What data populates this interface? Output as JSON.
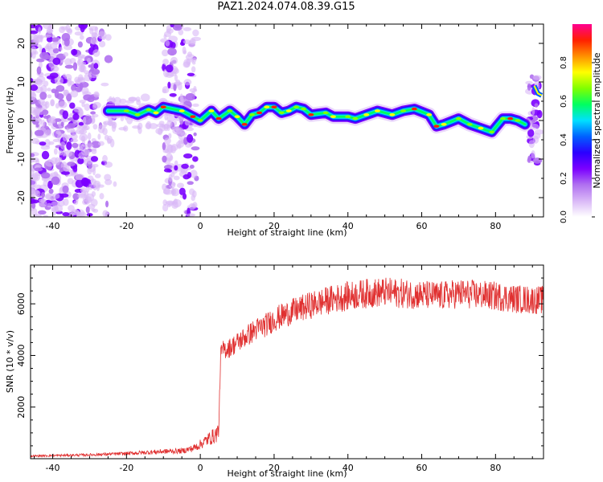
{
  "figure": {
    "title": "PAZ1.2024.074.08.39.G15"
  },
  "colors": {
    "snr_line": "#e03030",
    "background": "#ffffff",
    "colormap": [
      "#ffffff",
      "#d9b8f7",
      "#b070f0",
      "#7b00ff",
      "#2b00ff",
      "#0060ff",
      "#00e0ff",
      "#00ff60",
      "#80ff00",
      "#ffff00",
      "#ff9000",
      "#ff2000",
      "#ff0090"
    ]
  },
  "chart_data": [
    {
      "type": "heatmap",
      "title": "",
      "xlabel": "Height of straight line (km)",
      "ylabel": "Frequency (Hz)",
      "xlim": [
        -46,
        93
      ],
      "ylim": [
        -25,
        25
      ],
      "xticks": [
        -40,
        -20,
        0,
        20,
        40,
        60,
        80
      ],
      "yticks": [
        -20,
        -10,
        0,
        10,
        20
      ],
      "grid": false,
      "colorbar": {
        "label": "Normalized spectral amplitude",
        "range": [
          0.0,
          1.0
        ],
        "ticks": [
          0.0,
          0.2,
          0.4,
          0.6,
          0.8
        ]
      },
      "ridge": {
        "description_points": [
          [
            -25,
            2.5
          ],
          [
            -20,
            2.5
          ],
          [
            -17,
            1.5
          ],
          [
            -14,
            2.8
          ],
          [
            -12,
            2.0
          ],
          [
            -10,
            3.5
          ],
          [
            -5,
            2.5
          ],
          [
            -2,
            1.0
          ],
          [
            0,
            0.0
          ],
          [
            3,
            2.5
          ],
          [
            5,
            0.5
          ],
          [
            8,
            2.5
          ],
          [
            10,
            1.0
          ],
          [
            12,
            -1.0
          ],
          [
            14,
            1.5
          ],
          [
            16,
            2.0
          ],
          [
            18,
            3.5
          ],
          [
            20,
            3.5
          ],
          [
            22,
            2.0
          ],
          [
            24,
            2.5
          ],
          [
            26,
            3.5
          ],
          [
            28,
            3.0
          ],
          [
            30,
            1.5
          ],
          [
            34,
            2.0
          ],
          [
            36,
            1.0
          ],
          [
            40,
            1.0
          ],
          [
            42,
            0.5
          ],
          [
            45,
            1.5
          ],
          [
            48,
            2.5
          ],
          [
            52,
            1.5
          ],
          [
            55,
            2.5
          ],
          [
            58,
            3.0
          ],
          [
            62,
            1.5
          ],
          [
            64,
            -1.5
          ],
          [
            66,
            -1.0
          ],
          [
            70,
            0.5
          ],
          [
            73,
            -1.0
          ],
          [
            76,
            -2.0
          ],
          [
            79,
            -3.0
          ],
          [
            82,
            0.5
          ],
          [
            84,
            0.5
          ],
          [
            86,
            0.0
          ],
          [
            88,
            -1.0
          ]
        ],
        "noise_region_left": [
          -46,
          -25
        ],
        "noise_band": [
          -10,
          -1
        ],
        "end_noise_x": [
          89,
          92
        ]
      }
    },
    {
      "type": "line",
      "title": "",
      "xlabel": "Height of straight line (km)",
      "ylabel": "SNR (10 * v/v)",
      "xlim": [
        -46,
        93
      ],
      "ylim": [
        0,
        7500
      ],
      "xticks": [
        -40,
        -20,
        0,
        20,
        40,
        60,
        80
      ],
      "yticks": [
        2000,
        4000,
        6000
      ],
      "grid": false,
      "series": [
        {
          "x": [
            -46,
            -40,
            -30,
            -20,
            -10,
            -5,
            -2,
            0,
            2,
            4,
            5,
            5.5,
            6,
            8,
            10,
            12,
            15,
            18,
            20,
            25,
            30,
            35,
            40,
            45,
            50,
            55,
            60,
            65,
            70,
            75,
            80,
            85,
            90,
            93
          ],
          "y": [
            100,
            120,
            150,
            200,
            280,
            300,
            400,
            550,
            750,
            900,
            1100,
            4000,
            4200,
            4300,
            4500,
            4700,
            5000,
            5200,
            5400,
            5700,
            5950,
            6150,
            6300,
            6400,
            6450,
            6400,
            6350,
            6300,
            6400,
            6350,
            6300,
            6200,
            6150,
            6150
          ]
        }
      ]
    }
  ]
}
